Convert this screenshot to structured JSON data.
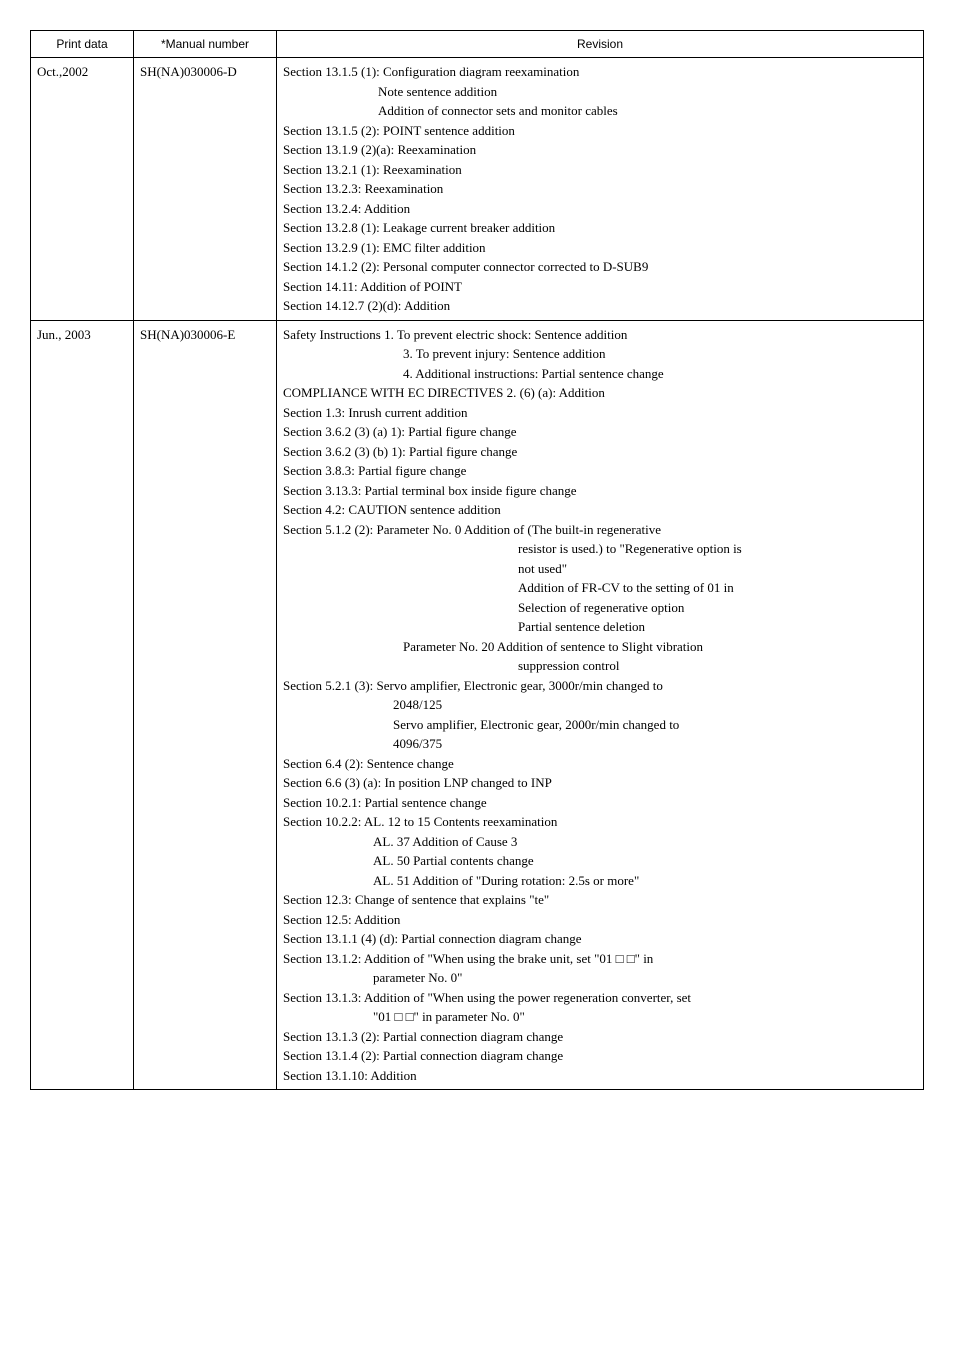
{
  "headers": {
    "print_data": "Print data",
    "manual_number": "*Manual  number",
    "revision": "Revision"
  },
  "rows": [
    {
      "print_data": "Oct.,2002",
      "manual_number": "SH(NA)030006-D",
      "lines": [
        {
          "cls": "line",
          "text": "Section 13.1.5 (1): Configuration diagram reexamination"
        },
        {
          "cls": "indent1",
          "text": "Note sentence addition"
        },
        {
          "cls": "indent1",
          "text": "Addition of connector sets and monitor cables"
        },
        {
          "cls": "line",
          "text": "Section 13.1.5 (2): POINT sentence addition"
        },
        {
          "cls": "line",
          "text": "Section 13.1.9 (2)(a): Reexamination"
        },
        {
          "cls": "line",
          "text": "Section 13.2.1 (1): Reexamination"
        },
        {
          "cls": "line",
          "text": "Section 13.2.3: Reexamination"
        },
        {
          "cls": "line",
          "text": "Section 13.2.4: Addition"
        },
        {
          "cls": "line",
          "text": "Section 13.2.8 (1): Leakage current breaker addition"
        },
        {
          "cls": "line",
          "text": "Section 13.2.9 (1): EMC filter addition"
        },
        {
          "cls": "line",
          "text": "Section 14.1.2 (2): Personal computer connector corrected to D-SUB9"
        },
        {
          "cls": "line",
          "text": "Section 14.11: Addition of POINT"
        },
        {
          "cls": "line",
          "text": "Section 14.12.7 (2)(d): Addition"
        }
      ]
    },
    {
      "print_data": "Jun., 2003",
      "manual_number": "SH(NA)030006-E",
      "lines": [
        {
          "cls": "line",
          "text": "Safety Instructions 1. To prevent electric shock: Sentence addition"
        },
        {
          "cls": "indent2",
          "text": "3. To prevent injury: Sentence addition"
        },
        {
          "cls": "indent2",
          "text": "4. Additional instructions: Partial sentence change"
        },
        {
          "cls": "line",
          "text": "COMPLIANCE WITH EC DIRECTIVES 2. (6) (a): Addition"
        },
        {
          "cls": "line",
          "text": "Section 1.3: Inrush current addition"
        },
        {
          "cls": "line",
          "text": "Section 3.6.2 (3) (a) 1): Partial figure change"
        },
        {
          "cls": "line",
          "text": "Section 3.6.2 (3) (b) 1): Partial figure change"
        },
        {
          "cls": "line",
          "text": "Section 3.8.3: Partial figure change"
        },
        {
          "cls": "line",
          "text": "Section 3.13.3: Partial terminal box inside figure change"
        },
        {
          "cls": "line",
          "text": "Section 4.2: CAUTION sentence addition"
        },
        {
          "cls": "line",
          "text": "Section 5.1.2 (2): Parameter No. 0   Addition of (The built-in regenerative"
        },
        {
          "cls": "indent3",
          "text": "resistor is used.) to \"Regenerative option is"
        },
        {
          "cls": "indent3",
          "text": "not used\""
        },
        {
          "cls": "indent3",
          "text": "Addition of FR-CV to the setting of 01 in"
        },
        {
          "cls": "indent3",
          "text": "Selection of regenerative option"
        },
        {
          "cls": "indent3",
          "text": "Partial sentence deletion"
        },
        {
          "cls": "indent2",
          "text": "Parameter No. 20 Addition of sentence to Slight vibration"
        },
        {
          "cls": "indent3",
          "text": "suppression control"
        },
        {
          "cls": "line",
          "text": "Section 5.2.1 (3): Servo amplifier, Electronic gear, 3000r/min changed to"
        },
        {
          "cls": "indent6",
          "text": "2048/125"
        },
        {
          "cls": "indent6",
          "text": "Servo amplifier, Electronic gear, 2000r/min changed to"
        },
        {
          "cls": "indent6",
          "text": "4096/375"
        },
        {
          "cls": "line",
          "text": "Section 6.4 (2): Sentence change"
        },
        {
          "cls": "line",
          "text": "Section 6.6 (3) (a): In position LNP changed to INP"
        },
        {
          "cls": "line",
          "text": "Section 10.2.1: Partial sentence change"
        },
        {
          "cls": "line",
          "text": "Section 10.2.2: AL. 12 to 15 Contents reexamination"
        },
        {
          "cls": "indent5",
          "text": "AL. 37 Addition of Cause 3"
        },
        {
          "cls": "indent5",
          "text": "AL. 50 Partial contents change"
        },
        {
          "cls": "indent5",
          "text": "AL. 51 Addition of \"During rotation: 2.5s or more\""
        },
        {
          "cls": "line",
          "text": "Section 12.3: Change of sentence that explains \"te\""
        },
        {
          "cls": "line",
          "text": "Section 12.5: Addition"
        },
        {
          "cls": "line",
          "text": "Section 13.1.1 (4) (d): Partial connection diagram change"
        },
        {
          "cls": "line",
          "text": "Section 13.1.2: Addition of \"When using the brake unit, set \"01 □ □\" in"
        },
        {
          "cls": "indent5",
          "text": "parameter No. 0\""
        },
        {
          "cls": "line",
          "text": "Section 13.1.3: Addition of \"When using the power regeneration converter, set"
        },
        {
          "cls": "indent5",
          "text": "\"01 □ □\" in parameter No. 0\""
        },
        {
          "cls": "line",
          "text": "Section 13.1.3 (2): Partial connection diagram change"
        },
        {
          "cls": "line",
          "text": "Section 13.1.4 (2): Partial connection diagram change"
        },
        {
          "cls": "line",
          "text": "Section 13.1.10: Addition"
        }
      ]
    }
  ]
}
